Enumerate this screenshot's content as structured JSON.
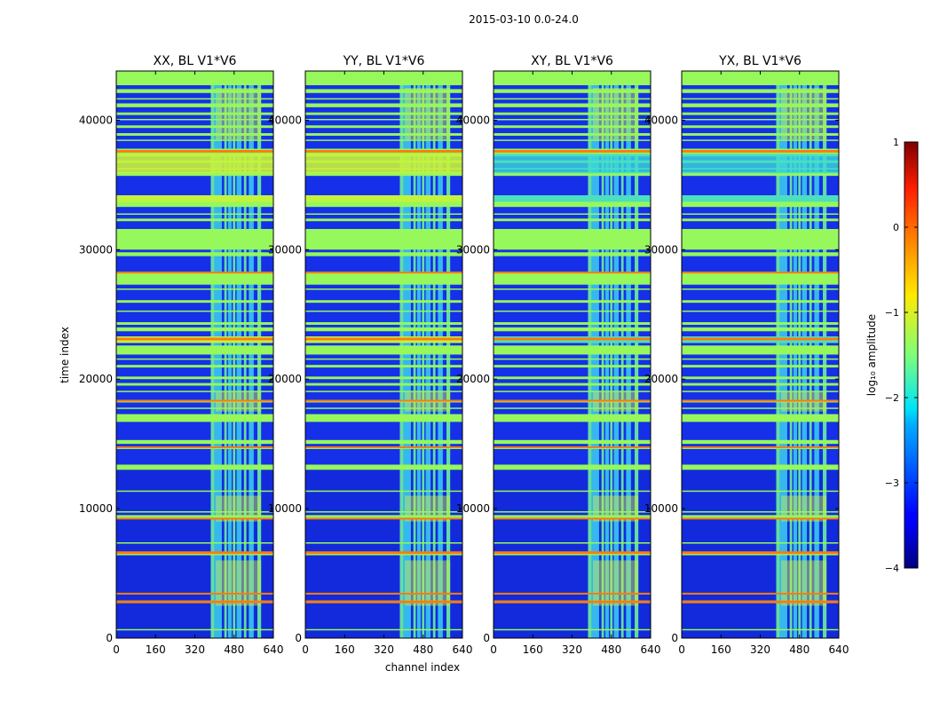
{
  "figure": {
    "suptitle": "2015-03-10 0.0-24.0"
  },
  "chart_data": {
    "type": "heatmap",
    "x_label": "channel index",
    "y_label": "time index",
    "x_range": [
      0,
      640
    ],
    "y_range": [
      0,
      43800
    ],
    "x_ticks": [
      "0",
      "160",
      "320",
      "480",
      "640"
    ],
    "x_tick_values": [
      0,
      160,
      320,
      480,
      640
    ],
    "y_ticks": [
      "0",
      "10000",
      "20000",
      "30000",
      "40000"
    ],
    "y_tick_values": [
      0,
      10000,
      20000,
      30000,
      40000
    ],
    "colorbar": {
      "label": "log₁₀ amplitude",
      "range": [
        -4,
        1
      ],
      "ticks": [
        "1",
        "0",
        "−1",
        "−2",
        "−3",
        "−4"
      ],
      "tick_values": [
        1,
        0,
        -1,
        -2,
        -3,
        -4
      ],
      "colormap": "jet"
    },
    "panels": [
      {
        "title": "XX, BL V1*V6",
        "pol": "XX"
      },
      {
        "title": "YY, BL V1*V6",
        "pol": "YY"
      },
      {
        "title": "XY, BL V1*V6",
        "pol": "XY"
      },
      {
        "title": "YX, BL V1*V6",
        "pol": "YX"
      }
    ],
    "flagged_rows": [
      [
        600,
        700
      ],
      [
        2700,
        2900
      ],
      [
        3400,
        3500
      ],
      [
        6400,
        6600
      ],
      [
        7300,
        7400
      ],
      [
        9200,
        9500
      ],
      [
        9700,
        9800
      ],
      [
        11300,
        11400
      ],
      [
        13000,
        13400
      ],
      [
        14600,
        14800
      ],
      [
        15000,
        15300
      ],
      [
        16700,
        17300
      ],
      [
        17700,
        17800
      ],
      [
        18200,
        18400
      ],
      [
        19000,
        19100
      ],
      [
        19500,
        19700
      ],
      [
        20000,
        20200
      ],
      [
        20900,
        21100
      ],
      [
        21500,
        21600
      ],
      [
        21900,
        22600
      ],
      [
        22800,
        23300
      ],
      [
        23700,
        24000
      ],
      [
        24200,
        24400
      ],
      [
        25200,
        25300
      ],
      [
        25900,
        26100
      ],
      [
        26900,
        27000
      ],
      [
        27300,
        28300
      ],
      [
        29500,
        29800
      ],
      [
        30000,
        31600
      ],
      [
        32200,
        32400
      ],
      [
        32700,
        32800
      ],
      [
        33300,
        34200
      ],
      [
        35700,
        36000
      ],
      [
        36200,
        36300
      ],
      [
        36700,
        36900
      ],
      [
        37200,
        37800
      ],
      [
        38400,
        38500
      ],
      [
        38800,
        39000
      ],
      [
        39400,
        39600
      ],
      [
        40000,
        40100
      ],
      [
        40400,
        40600
      ],
      [
        41000,
        41300
      ],
      [
        41600,
        41700
      ],
      [
        42100,
        42400
      ],
      [
        42700,
        43800
      ]
    ],
    "hot_rows": [
      [
        2700,
        2900
      ],
      [
        3400,
        3500
      ],
      [
        6500,
        6700
      ],
      [
        9200,
        9300
      ],
      [
        14700,
        14800
      ],
      [
        18300,
        18400
      ],
      [
        23000,
        23200
      ],
      [
        28200,
        28300
      ],
      [
        37500,
        37700
      ]
    ],
    "bright_bands_parallel": [
      [
        33700,
        34200
      ],
      [
        35900,
        37400
      ],
      [
        22800,
        23300
      ]
    ],
    "rfi_channels": [
      [
        385,
        400
      ],
      [
        400,
        430
      ],
      [
        440,
        450
      ],
      [
        455,
        470
      ],
      [
        475,
        485
      ],
      [
        490,
        510
      ],
      [
        520,
        530
      ],
      [
        540,
        560
      ],
      [
        575,
        590
      ]
    ]
  }
}
